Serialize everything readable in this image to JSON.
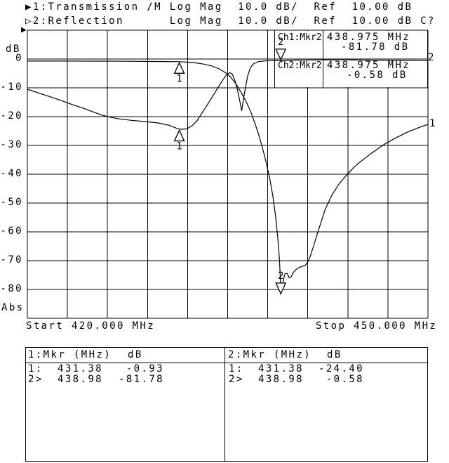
{
  "header": {
    "line1": {
      "indicator": "▶",
      "text": "1:Transmission /M Log Mag  10.0 dB/  Ref  10.00 dB"
    },
    "line2": {
      "indicator": "▷",
      "text": "2:Reflection      Log Mag  10.0 dB/  Ref  10.00 dB C?"
    }
  },
  "ref_position_indicator": "▶",
  "y_axis": {
    "title": "dB",
    "tick_labels": [
      "0",
      "-10",
      "-20",
      "-30",
      "-40",
      "-50",
      "-60",
      "-70",
      "-80"
    ],
    "bottom_note": "Abs"
  },
  "x_axis": {
    "start_label": "Start 420.000 MHz",
    "stop_label": "Stop 450.000 MHz"
  },
  "readouts": {
    "ch1_label": "Ch1:Mkr2",
    "ch1_freq": "438.975 MHz",
    "ch1_value": "-81.78 dB",
    "ch2_label": "Ch2:Mkr2",
    "ch2_freq": "438.975 MHz",
    "ch2_value": "-0.58 dB"
  },
  "trace_end_labels": {
    "trace1": "1",
    "trace2": "2"
  },
  "marker_table": {
    "ch1": {
      "title": "1:Mkr (MHz)",
      "unit": "dB",
      "rows": [
        {
          "id": "1:",
          "freq": "431.38",
          "value": "-0.93"
        },
        {
          "id": "2>",
          "freq": "438.98",
          "value": "-81.78"
        }
      ]
    },
    "ch2": {
      "title": "2:Mkr (MHz)",
      "unit": "dB",
      "rows": [
        {
          "id": "1:",
          "freq": "431.38",
          "value": "-24.40"
        },
        {
          "id": "2>",
          "freq": "438.98",
          "value": "-0.58"
        }
      ]
    }
  },
  "chart_data": {
    "type": "line",
    "title": "Network analyzer: 1:Transmission /M, 2:Reflection, Log Mag 10.0 dB/div, Ref 10.00 dB",
    "x_unit": "MHz",
    "y_unit": "dB",
    "x_range_mhz": [
      420,
      450
    ],
    "y_grid_top_db": 10,
    "y_grid_bottom_db": -90,
    "y_scale_db_per_div": 10,
    "ref_level_db": 10,
    "grid": "on",
    "series": [
      {
        "name": "1: Transmission /M (Log Mag)",
        "points": [
          [
            420.0,
            -0.7
          ],
          [
            423.0,
            -0.7
          ],
          [
            425.5,
            -0.72
          ],
          [
            427.5,
            -0.78
          ],
          [
            429.5,
            -0.85
          ],
          [
            431.38,
            -0.93
          ],
          [
            432.0,
            -1.1
          ],
          [
            432.6,
            -1.35
          ],
          [
            433.2,
            -1.75
          ],
          [
            433.8,
            -2.4
          ],
          [
            434.3,
            -3.3
          ],
          [
            434.8,
            -4.6
          ],
          [
            435.2,
            -6.2
          ],
          [
            435.6,
            -8.5
          ],
          [
            436.0,
            -11.5
          ],
          [
            436.35,
            -14.5
          ],
          [
            436.7,
            -18.0
          ],
          [
            437.0,
            -21.8
          ],
          [
            437.3,
            -25.9
          ],
          [
            437.6,
            -30.7
          ],
          [
            437.9,
            -36.2
          ],
          [
            438.15,
            -41.5
          ],
          [
            438.4,
            -48.0
          ],
          [
            438.6,
            -55.0
          ],
          [
            438.75,
            -62.0
          ],
          [
            438.87,
            -69.0
          ],
          [
            438.93,
            -74.5
          ],
          [
            438.98,
            -81.78
          ],
          [
            439.08,
            -79.5
          ],
          [
            439.18,
            -76.5
          ],
          [
            439.3,
            -74.5
          ],
          [
            439.45,
            -74.4
          ],
          [
            439.6,
            -75.9
          ],
          [
            439.75,
            -75.6
          ],
          [
            439.95,
            -73.9
          ],
          [
            440.2,
            -72.7
          ],
          [
            440.5,
            -72.1
          ],
          [
            440.8,
            -71.7
          ],
          [
            441.0,
            -70.5
          ],
          [
            441.2,
            -68.3
          ],
          [
            441.5,
            -63.9
          ],
          [
            441.9,
            -58.0
          ],
          [
            442.3,
            -52.3
          ],
          [
            442.8,
            -47.3
          ],
          [
            443.3,
            -43.6
          ],
          [
            443.9,
            -40.3
          ],
          [
            444.5,
            -37.4
          ],
          [
            445.2,
            -34.7
          ],
          [
            445.9,
            -32.3
          ],
          [
            446.7,
            -29.7
          ],
          [
            447.5,
            -27.6
          ],
          [
            448.4,
            -25.5
          ],
          [
            449.2,
            -24.0
          ],
          [
            450.0,
            -22.7
          ]
        ]
      },
      {
        "name": "2: Reflection (Log Mag)",
        "points": [
          [
            420.0,
            -10.5
          ],
          [
            420.4,
            -11.1
          ],
          [
            420.9,
            -11.9
          ],
          [
            421.4,
            -12.6
          ],
          [
            422.4,
            -14.2
          ],
          [
            423.3,
            -15.7
          ],
          [
            424.2,
            -17.1
          ],
          [
            425.0,
            -18.5
          ],
          [
            425.6,
            -19.5
          ],
          [
            426.2,
            -20.2
          ],
          [
            426.9,
            -20.8
          ],
          [
            427.8,
            -21.3
          ],
          [
            428.8,
            -21.7
          ],
          [
            429.8,
            -22.2
          ],
          [
            430.6,
            -23.0
          ],
          [
            431.38,
            -24.4
          ],
          [
            431.9,
            -24.3
          ],
          [
            432.3,
            -23.3
          ],
          [
            432.7,
            -21.5
          ],
          [
            433.0,
            -19.3
          ],
          [
            433.4,
            -16.5
          ],
          [
            433.8,
            -13.5
          ],
          [
            434.2,
            -10.5
          ],
          [
            434.6,
            -7.5
          ],
          [
            434.9,
            -5.6
          ],
          [
            435.15,
            -4.7
          ],
          [
            435.35,
            -5.3
          ],
          [
            435.55,
            -7.5
          ],
          [
            435.75,
            -11.0
          ],
          [
            435.95,
            -15.5
          ],
          [
            436.05,
            -18.0
          ],
          [
            436.2,
            -13.5
          ],
          [
            436.35,
            -9.5
          ],
          [
            436.5,
            -5.8
          ],
          [
            436.7,
            -3.0
          ],
          [
            436.95,
            -1.6
          ],
          [
            437.3,
            -0.9
          ],
          [
            437.8,
            -0.65
          ],
          [
            438.3,
            -0.55
          ],
          [
            438.98,
            -0.58
          ],
          [
            440.0,
            -0.4
          ],
          [
            442.0,
            -0.3
          ],
          [
            444.0,
            -0.3
          ],
          [
            446.0,
            -0.4
          ],
          [
            448.0,
            -0.5
          ],
          [
            450.0,
            -0.55
          ]
        ]
      }
    ],
    "markers": [
      {
        "label": "1",
        "channel": 1,
        "freq_mhz": 431.38,
        "db": -0.93,
        "dir": "up"
      },
      {
        "label": "1",
        "channel": 2,
        "freq_mhz": 431.38,
        "db": -24.4,
        "dir": "up"
      },
      {
        "label": "2",
        "channel": 1,
        "freq_mhz": 438.98,
        "db": -81.78,
        "dir": "down"
      },
      {
        "label": "2",
        "channel": 2,
        "freq_mhz": 438.975,
        "db": -0.58,
        "dir": "down"
      }
    ]
  }
}
